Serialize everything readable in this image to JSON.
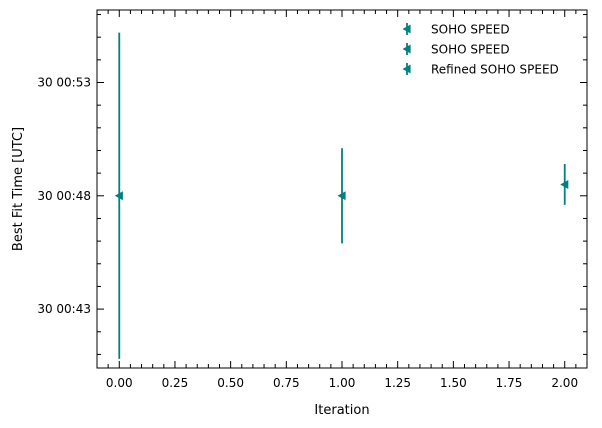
{
  "chart_data": {
    "type": "scatter",
    "title": "",
    "xlabel": "Iteration",
    "ylabel": "Best Fit Time [UTC]",
    "xlim": [
      -0.1,
      2.1
    ],
    "ylim_minutes_after_0040": [
      0.4,
      16.2
    ],
    "x_ticks": [
      {
        "value": 0.0,
        "label": "0.00"
      },
      {
        "value": 0.25,
        "label": "0.25"
      },
      {
        "value": 0.5,
        "label": "0.50"
      },
      {
        "value": 0.75,
        "label": "0.75"
      },
      {
        "value": 1.0,
        "label": "1.00"
      },
      {
        "value": 1.25,
        "label": "1.25"
      },
      {
        "value": 1.5,
        "label": "1.50"
      },
      {
        "value": 1.75,
        "label": "1.75"
      },
      {
        "value": 2.0,
        "label": "2.00"
      }
    ],
    "y_ticks": [
      {
        "value": 3,
        "label": "30 00:43"
      },
      {
        "value": 8,
        "label": "30 00:48"
      },
      {
        "value": 13,
        "label": "30 00:53"
      }
    ],
    "series": [
      {
        "name": "SOHO SPEED",
        "marker": "left-triangle",
        "color": "#008080",
        "points": [
          {
            "x": 0,
            "y": 8.0,
            "err_low": 7.2,
            "err_high": 7.2
          }
        ]
      },
      {
        "name": "SOHO SPEED",
        "marker": "left-triangle",
        "color": "#008080",
        "points": [
          {
            "x": 1,
            "y": 8.0,
            "err_low": 2.1,
            "err_high": 2.1
          }
        ]
      },
      {
        "name": "Refined SOHO SPEED",
        "marker": "left-triangle",
        "color": "#008080",
        "points": [
          {
            "x": 2,
            "y": 8.5,
            "err_low": 0.9,
            "err_high": 0.9
          }
        ]
      }
    ],
    "legend_position": "top-right",
    "grid": false
  }
}
